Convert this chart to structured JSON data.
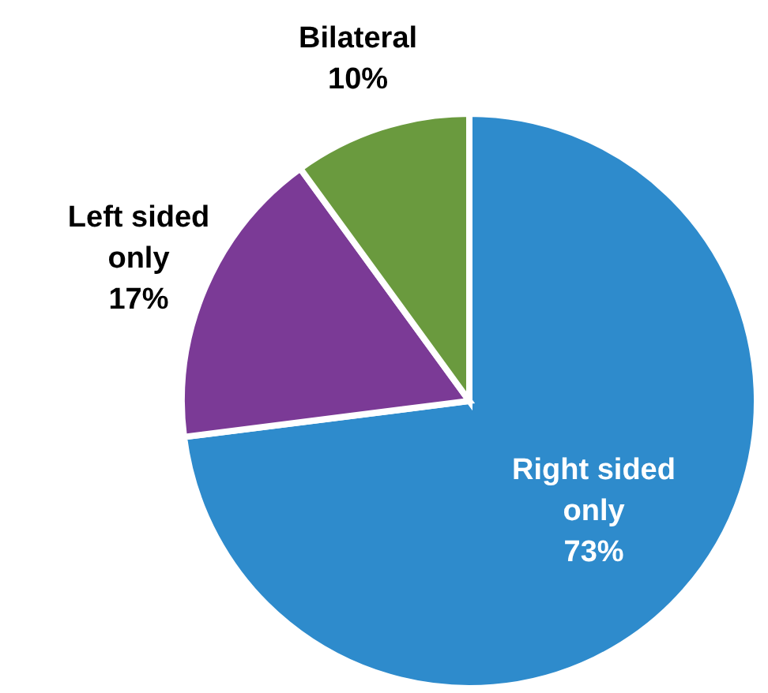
{
  "chart_data": {
    "type": "pie",
    "categories": [
      "Right sided only",
      "Left sided only",
      "Bilateral"
    ],
    "values": [
      73,
      17,
      10
    ],
    "colors": [
      "#2e8bcc",
      "#7b3a96",
      "#6a9a3e"
    ],
    "value_labels": [
      "73%",
      "17%",
      "10%"
    ]
  }
}
